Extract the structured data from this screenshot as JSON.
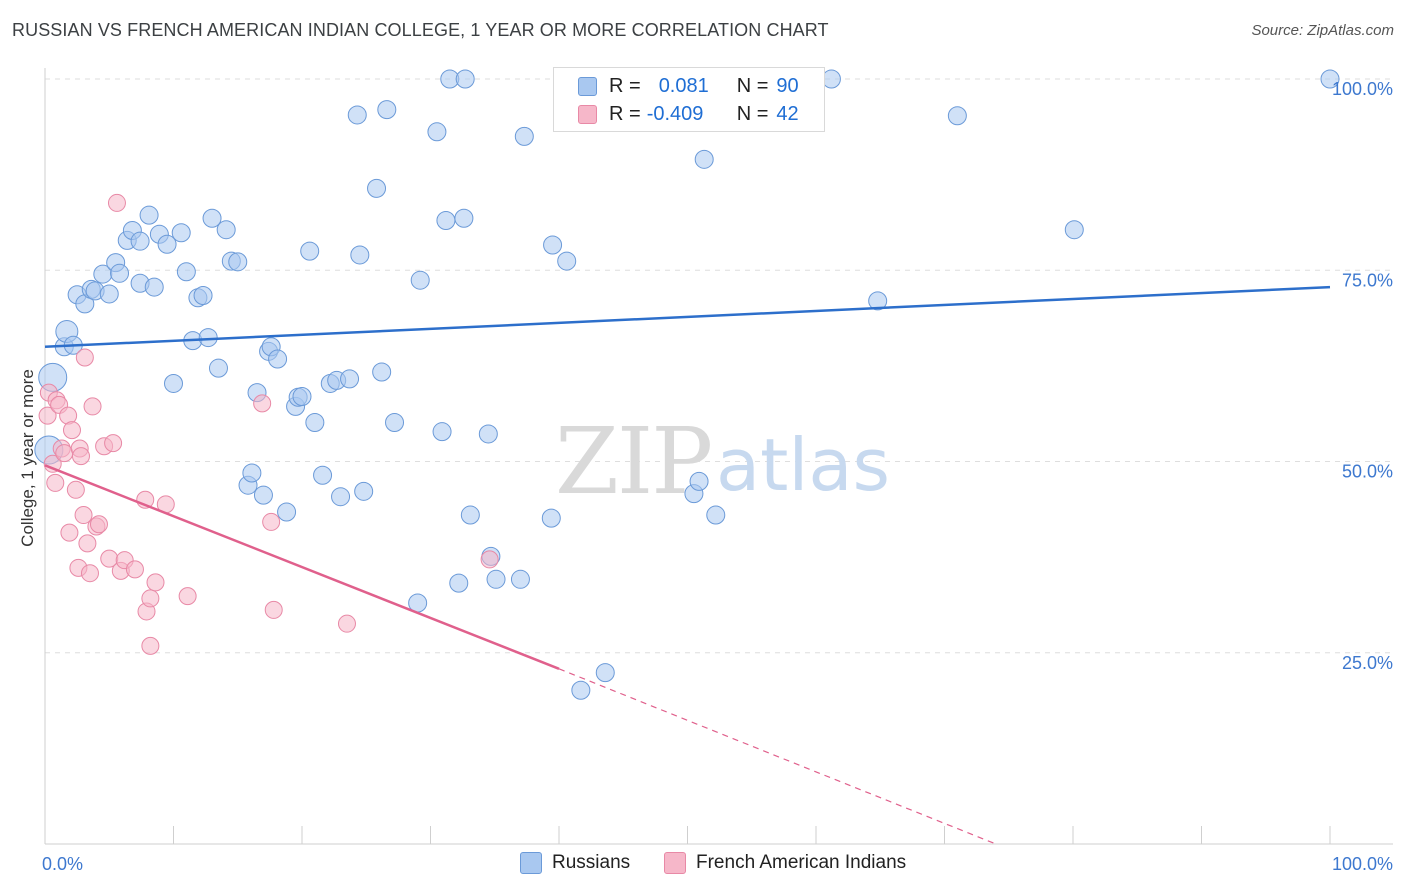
{
  "title": "RUSSIAN VS FRENCH AMERICAN INDIAN COLLEGE, 1 YEAR OR MORE CORRELATION CHART",
  "source": "Source: ZipAtlas.com",
  "watermark": {
    "zip": "ZIP",
    "atlas": "atlas"
  },
  "legend": {
    "r_label": "R =",
    "n_label": "N =",
    "rows": [
      {
        "r": "0.081",
        "n": "90",
        "color": "#a9c8f0"
      },
      {
        "r": "-0.409",
        "n": "42",
        "color": "#f6b7c9"
      }
    ]
  },
  "bottom_legend": [
    "Russians",
    "French American Indians"
  ],
  "colors": {
    "russians_fill": "#a9c8f0",
    "russians_stroke": "#6b9ad8",
    "russians_line": "#2d6fcb",
    "french_fill": "#f6b7c9",
    "french_stroke": "#e889a6",
    "french_line": "#e0608c",
    "axis_text": "#3d78cf",
    "grid": "#dedede"
  },
  "chart_data": {
    "type": "scatter",
    "title": "RUSSIAN VS FRENCH AMERICAN INDIAN COLLEGE, 1 YEAR OR MORE CORRELATION CHART",
    "xlabel": "",
    "ylabel": "College, 1 year or more",
    "xlim": [
      0,
      100
    ],
    "ylim": [
      0,
      100
    ],
    "x_tick_labels": [
      "0.0%",
      "100.0%"
    ],
    "y_ticks": [
      {
        "value": 25,
        "label": "25.0%"
      },
      {
        "value": 50,
        "label": "50.0%"
      },
      {
        "value": 75,
        "label": "75.0%"
      },
      {
        "value": 100,
        "label": "100.0%"
      }
    ],
    "grid": true,
    "legend_position": "top-center",
    "series": [
      {
        "name": "Russians",
        "r": 0.081,
        "n": 90,
        "trend": {
          "x": [
            0,
            100
          ],
          "y": [
            65.0,
            72.8
          ]
        },
        "points": [
          [
            0.3,
            51.5
          ],
          [
            0.6,
            61
          ],
          [
            1.5,
            65
          ],
          [
            1.7,
            67
          ],
          [
            2.2,
            65.2
          ],
          [
            2.5,
            71.8
          ],
          [
            3.1,
            70.6
          ],
          [
            3.6,
            72.5
          ],
          [
            3.9,
            72.3
          ],
          [
            4.5,
            74.5
          ],
          [
            5.0,
            71.9
          ],
          [
            5.5,
            76
          ],
          [
            5.8,
            74.6
          ],
          [
            6.4,
            78.9
          ],
          [
            6.8,
            80.2
          ],
          [
            7.4,
            78.8
          ],
          [
            7.4,
            73.3
          ],
          [
            8.1,
            82.2
          ],
          [
            8.5,
            72.8
          ],
          [
            8.9,
            79.7
          ],
          [
            9.5,
            78.4
          ],
          [
            10.0,
            60.2
          ],
          [
            10.6,
            79.9
          ],
          [
            11.0,
            74.8
          ],
          [
            11.5,
            65.8
          ],
          [
            11.9,
            71.4
          ],
          [
            12.3,
            71.7
          ],
          [
            12.7,
            66.2
          ],
          [
            13.0,
            81.8
          ],
          [
            13.5,
            62.2
          ],
          [
            14.1,
            80.3
          ],
          [
            14.5,
            76.2
          ],
          [
            15.0,
            76.1
          ],
          [
            15.8,
            46.9
          ],
          [
            16.1,
            48.5
          ],
          [
            16.5,
            59
          ],
          [
            17.0,
            45.6
          ],
          [
            17.4,
            64.4
          ],
          [
            17.6,
            65
          ],
          [
            18.1,
            63.4
          ],
          [
            18.8,
            43.4
          ],
          [
            19.5,
            57.2
          ],
          [
            19.7,
            58.4
          ],
          [
            20.0,
            58.5
          ],
          [
            20.6,
            77.5
          ],
          [
            21.0,
            55.1
          ],
          [
            21.6,
            48.2
          ],
          [
            22.2,
            60.2
          ],
          [
            22.7,
            60.6
          ],
          [
            23.0,
            45.4
          ],
          [
            23.7,
            60.8
          ],
          [
            24.3,
            95.3
          ],
          [
            24.5,
            77
          ],
          [
            24.8,
            46.1
          ],
          [
            25.8,
            85.7
          ],
          [
            26.2,
            61.7
          ],
          [
            26.6,
            96
          ],
          [
            27.2,
            55.1
          ],
          [
            29.0,
            31.5
          ],
          [
            29.2,
            73.7
          ],
          [
            30.5,
            93.1
          ],
          [
            30.9,
            53.9
          ],
          [
            31.2,
            81.5
          ],
          [
            31.5,
            100
          ],
          [
            32.2,
            34.1
          ],
          [
            32.6,
            81.8
          ],
          [
            32.7,
            100
          ],
          [
            33.1,
            43
          ],
          [
            34.5,
            53.6
          ],
          [
            34.7,
            37.6
          ],
          [
            35.1,
            34.6
          ],
          [
            37.0,
            34.6
          ],
          [
            37.3,
            92.5
          ],
          [
            39.4,
            42.6
          ],
          [
            39.5,
            78.3
          ],
          [
            40.6,
            76.2
          ],
          [
            41.7,
            20.1
          ],
          [
            43.6,
            22.4
          ],
          [
            45.1,
            100
          ],
          [
            50.5,
            45.8
          ],
          [
            50.9,
            47.4
          ],
          [
            51.3,
            89.5
          ],
          [
            52.2,
            43
          ],
          [
            59.6,
            100
          ],
          [
            61.2,
            100
          ],
          [
            64.8,
            71
          ],
          [
            71.0,
            95.2
          ],
          [
            80.1,
            80.3
          ],
          [
            100.0,
            100
          ]
        ],
        "sizes": {
          "0.3,51.5": "large",
          "0.6,61": "large",
          "1.7,67": "medium"
        }
      },
      {
        "name": "French American Indians",
        "r": -0.409,
        "n": 42,
        "trend": {
          "x": [
            0,
            40
          ],
          "y": [
            49.5,
            22.9
          ],
          "dashed_extension": {
            "x": [
              40,
              74
            ],
            "y": [
              22.9,
              0
            ]
          }
        },
        "points": [
          [
            0.2,
            56
          ],
          [
            0.3,
            59
          ],
          [
            0.6,
            49.7
          ],
          [
            0.8,
            47.2
          ],
          [
            0.9,
            58
          ],
          [
            1.1,
            57.4
          ],
          [
            1.3,
            51.7
          ],
          [
            1.5,
            51.1
          ],
          [
            1.8,
            56
          ],
          [
            1.9,
            40.7
          ],
          [
            2.1,
            54.1
          ],
          [
            2.4,
            46.3
          ],
          [
            2.6,
            36.1
          ],
          [
            2.7,
            51.7
          ],
          [
            2.8,
            50.7
          ],
          [
            3.0,
            43
          ],
          [
            3.1,
            63.6
          ],
          [
            3.3,
            39.3
          ],
          [
            3.5,
            35.4
          ],
          [
            3.7,
            57.2
          ],
          [
            4.0,
            41.5
          ],
          [
            4.2,
            41.8
          ],
          [
            4.6,
            52
          ],
          [
            5.0,
            37.3
          ],
          [
            5.3,
            52.4
          ],
          [
            5.6,
            83.8
          ],
          [
            5.9,
            35.7
          ],
          [
            6.2,
            37.1
          ],
          [
            7.0,
            35.9
          ],
          [
            7.8,
            45
          ],
          [
            7.9,
            30.4
          ],
          [
            8.2,
            32.1
          ],
          [
            8.2,
            25.9
          ],
          [
            8.6,
            34.2
          ],
          [
            9.4,
            44.4
          ],
          [
            11.1,
            32.4
          ],
          [
            16.9,
            57.6
          ],
          [
            17.6,
            42.1
          ],
          [
            17.8,
            30.6
          ],
          [
            23.5,
            28.8
          ],
          [
            34.6,
            37.2
          ]
        ]
      }
    ]
  }
}
